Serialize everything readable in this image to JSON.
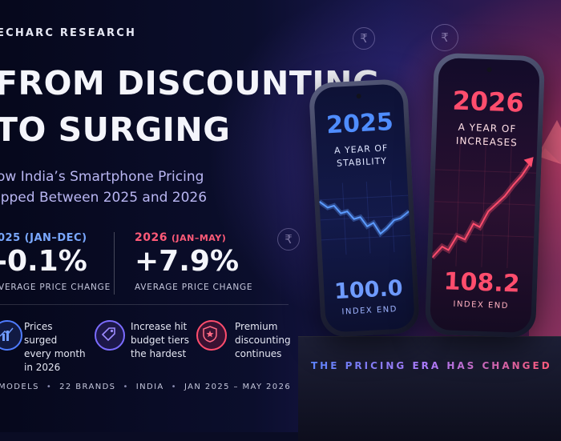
{
  "header": {
    "brand": "ECHARC RESEARCH",
    "title_line1": "FROM DISCOUNTING",
    "title_line2": "TO SURGING",
    "subtitle_line1": "ow India’s Smartphone Pricing",
    "subtitle_line2": "ipped Between 2025 and 2026"
  },
  "stats": [
    {
      "label": "025 (JAN–DEC)",
      "value": "-0.1%",
      "caption": "VERAGE PRICE CHANGE",
      "color": "#7aa8ff"
    },
    {
      "label_year": "2026",
      "label_range": "(JAN–MAY)",
      "value": "+7.9%",
      "caption": "AVERAGE PRICE CHANGE",
      "color": "#ff5a78"
    }
  ],
  "features": [
    {
      "icon": "bar-chart-icon",
      "line1": "Prices surged",
      "line2": "every month",
      "line3": "in 2026"
    },
    {
      "icon": "price-tag-icon",
      "line1": "Increase hit",
      "line2": "budget tiers",
      "line3": "the hardest"
    },
    {
      "icon": "premium-badge-icon",
      "line1": "Premium",
      "line2": "discounting",
      "line3": "continues"
    }
  ],
  "footer": {
    "models": "MODELS",
    "brands": "22 BRANDS",
    "region": "INDIA",
    "period": "JAN 2025 – MAY 2026"
  },
  "phones": {
    "left": {
      "year": "2025",
      "line1": "A YEAR OF",
      "line2": "STABILITY",
      "index_value": "100.0",
      "index_label": "INDEX END",
      "accent": "#4f8dff"
    },
    "right": {
      "year": "2026",
      "line1": "A YEAR OF",
      "line2": "INCREASES",
      "index_value": "108.2",
      "index_label": "INDEX END",
      "accent": "#ff4d6d"
    }
  },
  "pedestal_text": "THE PRICING ERA HAS CHANGED",
  "decor": {
    "currency_symbol": "₹"
  }
}
